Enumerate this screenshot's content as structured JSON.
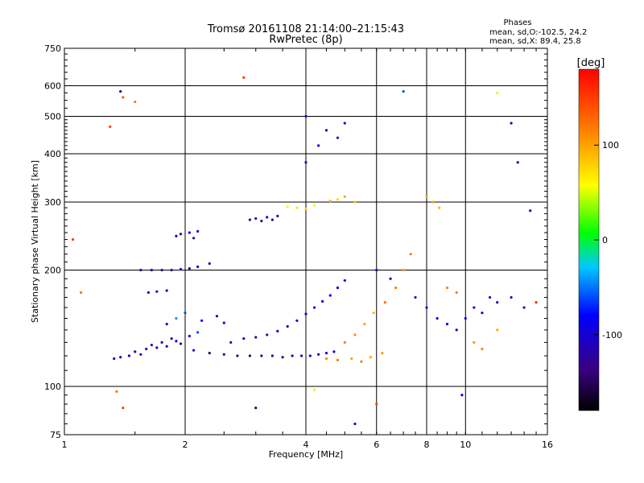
{
  "chart_data": {
    "type": "scatter",
    "title": "Tromsø 20161108 21:14:00–21:15:43",
    "subtitle": "RwPretec (8p)",
    "xlabel": "Frequency [MHz]",
    "ylabel": "Stationary phase Virtual Height [km]",
    "x_scale": "log",
    "y_scale": "log",
    "xlim": [
      1,
      16
    ],
    "ylim": [
      75,
      750
    ],
    "x_ticks": [
      1,
      2,
      4,
      6,
      8,
      10,
      16
    ],
    "x_tick_labels": [
      "1",
      "2",
      "4",
      "6",
      "8",
      "10",
      "16"
    ],
    "y_ticks": [
      75,
      100,
      200,
      300,
      400,
      500,
      600,
      750
    ],
    "y_tick_labels": [
      "75",
      "100",
      "200",
      "300",
      "400",
      "500",
      "600",
      "750"
    ],
    "grid": true,
    "phase_info": {
      "heading": "Phases",
      "line_o": "mean, sd,O:-102.5, 24.2",
      "line_x": "mean, sd,X:  89.4, 25.8"
    },
    "colorbar": {
      "label": "[deg]",
      "range": [
        -180,
        180
      ],
      "ticks": [
        100,
        0,
        -100
      ],
      "tick_labels": [
        "100",
        "0",
        "-100"
      ]
    },
    "series": [
      {
        "values": [
          {
            "x": 1.33,
            "y": 118,
            "phase": -110
          },
          {
            "x": 1.38,
            "y": 119,
            "phase": -105
          },
          {
            "x": 1.45,
            "y": 120,
            "phase": -95
          },
          {
            "x": 1.5,
            "y": 123,
            "phase": -120
          },
          {
            "x": 1.55,
            "y": 121,
            "phase": -100
          },
          {
            "x": 1.6,
            "y": 125,
            "phase": -112
          },
          {
            "x": 1.65,
            "y": 128,
            "phase": -130
          },
          {
            "x": 1.7,
            "y": 126,
            "phase": -98
          },
          {
            "x": 1.75,
            "y": 130,
            "phase": -115
          },
          {
            "x": 1.8,
            "y": 127,
            "phase": -105
          },
          {
            "x": 1.85,
            "y": 133,
            "phase": -125
          },
          {
            "x": 1.9,
            "y": 131,
            "phase": -90
          },
          {
            "x": 1.95,
            "y": 129,
            "phase": -140
          },
          {
            "x": 2.05,
            "y": 135,
            "phase": -80
          },
          {
            "x": 2.15,
            "y": 138,
            "phase": -60
          },
          {
            "x": 2.1,
            "y": 124,
            "phase": -110
          },
          {
            "x": 2.3,
            "y": 122,
            "phase": -150
          },
          {
            "x": 2.5,
            "y": 121,
            "phase": -140
          },
          {
            "x": 2.7,
            "y": 120,
            "phase": -130
          },
          {
            "x": 2.9,
            "y": 120,
            "phase": -145
          },
          {
            "x": 3.1,
            "y": 120,
            "phase": -125
          },
          {
            "x": 3.3,
            "y": 120,
            "phase": -135
          },
          {
            "x": 3.5,
            "y": 119,
            "phase": -140
          },
          {
            "x": 3.7,
            "y": 120,
            "phase": -120
          },
          {
            "x": 3.9,
            "y": 120,
            "phase": -110
          },
          {
            "x": 4.1,
            "y": 120,
            "phase": -100
          },
          {
            "x": 4.3,
            "y": 121,
            "phase": -95
          },
          {
            "x": 4.5,
            "y": 122,
            "phase": -105
          },
          {
            "x": 4.7,
            "y": 123,
            "phase": -90
          },
          {
            "x": 2.6,
            "y": 130,
            "phase": -120
          },
          {
            "x": 2.8,
            "y": 133,
            "phase": -115
          },
          {
            "x": 3.0,
            "y": 134,
            "phase": -130
          },
          {
            "x": 3.2,
            "y": 136,
            "phase": -110
          },
          {
            "x": 3.4,
            "y": 139,
            "phase": -105
          },
          {
            "x": 3.6,
            "y": 143,
            "phase": -120
          },
          {
            "x": 3.8,
            "y": 148,
            "phase": -100
          },
          {
            "x": 4.0,
            "y": 154,
            "phase": -110
          },
          {
            "x": 4.2,
            "y": 160,
            "phase": -95
          },
          {
            "x": 4.4,
            "y": 166,
            "phase": -105
          },
          {
            "x": 4.6,
            "y": 172,
            "phase": -90
          },
          {
            "x": 4.8,
            "y": 180,
            "phase": -100
          },
          {
            "x": 5.0,
            "y": 188,
            "phase": -85
          },
          {
            "x": 2.2,
            "y": 148,
            "phase": -100
          },
          {
            "x": 2.4,
            "y": 152,
            "phase": -110
          },
          {
            "x": 2.5,
            "y": 146,
            "phase": -95
          },
          {
            "x": 2.0,
            "y": 155,
            "phase": -60
          },
          {
            "x": 1.9,
            "y": 150,
            "phase": -40
          },
          {
            "x": 1.8,
            "y": 145,
            "phase": -90
          },
          {
            "x": 1.55,
            "y": 200,
            "phase": -110
          },
          {
            "x": 1.65,
            "y": 200,
            "phase": -120
          },
          {
            "x": 1.75,
            "y": 200,
            "phase": -105
          },
          {
            "x": 1.85,
            "y": 200,
            "phase": -115
          },
          {
            "x": 1.95,
            "y": 201,
            "phase": -100
          },
          {
            "x": 2.05,
            "y": 202,
            "phase": -110
          },
          {
            "x": 2.15,
            "y": 204,
            "phase": -95
          },
          {
            "x": 2.3,
            "y": 208,
            "phase": -120
          },
          {
            "x": 1.62,
            "y": 175,
            "phase": -105
          },
          {
            "x": 1.7,
            "y": 176,
            "phase": -115
          },
          {
            "x": 1.8,
            "y": 177,
            "phase": -98
          },
          {
            "x": 1.9,
            "y": 245,
            "phase": -110
          },
          {
            "x": 1.95,
            "y": 248,
            "phase": -120
          },
          {
            "x": 2.05,
            "y": 250,
            "phase": -100
          },
          {
            "x": 2.1,
            "y": 242,
            "phase": -130
          },
          {
            "x": 2.15,
            "y": 252,
            "phase": -90
          },
          {
            "x": 2.9,
            "y": 270,
            "phase": -120
          },
          {
            "x": 3.0,
            "y": 272,
            "phase": -110
          },
          {
            "x": 3.1,
            "y": 268,
            "phase": -130
          },
          {
            "x": 3.2,
            "y": 274,
            "phase": -100
          },
          {
            "x": 3.3,
            "y": 270,
            "phase": -115
          },
          {
            "x": 3.4,
            "y": 276,
            "phase": -125
          },
          {
            "x": 3.6,
            "y": 292,
            "phase": 60
          },
          {
            "x": 3.8,
            "y": 290,
            "phase": 70
          },
          {
            "x": 4.0,
            "y": 288,
            "phase": 80
          },
          {
            "x": 4.2,
            "y": 294,
            "phase": 55
          },
          {
            "x": 4.6,
            "y": 302,
            "phase": 90
          },
          {
            "x": 4.8,
            "y": 305,
            "phase": 75
          },
          {
            "x": 5.0,
            "y": 310,
            "phase": 100
          },
          {
            "x": 5.3,
            "y": 300,
            "phase": 85
          },
          {
            "x": 4.0,
            "y": 380,
            "phase": -110
          },
          {
            "x": 4.3,
            "y": 420,
            "phase": -100
          },
          {
            "x": 4.5,
            "y": 460,
            "phase": -95
          },
          {
            "x": 4.8,
            "y": 440,
            "phase": -120
          },
          {
            "x": 4.0,
            "y": 500,
            "phase": -105
          },
          {
            "x": 5.0,
            "y": 480,
            "phase": -90
          },
          {
            "x": 4.5,
            "y": 118,
            "phase": 110
          },
          {
            "x": 4.8,
            "y": 117,
            "phase": 120
          },
          {
            "x": 5.2,
            "y": 118,
            "phase": 100
          },
          {
            "x": 5.5,
            "y": 116,
            "phase": 115
          },
          {
            "x": 5.8,
            "y": 119,
            "phase": 95
          },
          {
            "x": 6.2,
            "y": 122,
            "phase": 105
          },
          {
            "x": 5.0,
            "y": 130,
            "phase": 120
          },
          {
            "x": 5.3,
            "y": 136,
            "phase": 110
          },
          {
            "x": 5.6,
            "y": 145,
            "phase": 100
          },
          {
            "x": 5.9,
            "y": 155,
            "phase": 90
          },
          {
            "x": 6.3,
            "y": 165,
            "phase": 125
          },
          {
            "x": 6.7,
            "y": 180,
            "phase": 115
          },
          {
            "x": 7.0,
            "y": 200,
            "phase": 105
          },
          {
            "x": 7.3,
            "y": 220,
            "phase": 120
          },
          {
            "x": 6.0,
            "y": 200,
            "phase": -100
          },
          {
            "x": 6.5,
            "y": 190,
            "phase": -110
          },
          {
            "x": 7.5,
            "y": 170,
            "phase": -90
          },
          {
            "x": 8.0,
            "y": 160,
            "phase": -105
          },
          {
            "x": 8.5,
            "y": 150,
            "phase": -100
          },
          {
            "x": 9.0,
            "y": 145,
            "phase": -95
          },
          {
            "x": 9.5,
            "y": 140,
            "phase": -110
          },
          {
            "x": 10.0,
            "y": 150,
            "phase": -100
          },
          {
            "x": 10.5,
            "y": 160,
            "phase": -105
          },
          {
            "x": 11.0,
            "y": 155,
            "phase": -90
          },
          {
            "x": 11.5,
            "y": 170,
            "phase": -100
          },
          {
            "x": 12.0,
            "y": 165,
            "phase": -110
          },
          {
            "x": 8.0,
            "y": 310,
            "phase": 95
          },
          {
            "x": 8.3,
            "y": 300,
            "phase": 100
          },
          {
            "x": 8.6,
            "y": 290,
            "phase": 90
          },
          {
            "x": 9.0,
            "y": 180,
            "phase": 110
          },
          {
            "x": 9.5,
            "y": 175,
            "phase": 120
          },
          {
            "x": 10.5,
            "y": 130,
            "phase": 105
          },
          {
            "x": 11.0,
            "y": 125,
            "phase": 115
          },
          {
            "x": 12.0,
            "y": 140,
            "phase": 95
          },
          {
            "x": 13.0,
            "y": 170,
            "phase": -100
          },
          {
            "x": 14.0,
            "y": 160,
            "phase": -110
          },
          {
            "x": 15.0,
            "y": 165,
            "phase": 160
          },
          {
            "x": 1.1,
            "y": 175,
            "phase": 120
          },
          {
            "x": 1.05,
            "y": 240,
            "phase": 150
          },
          {
            "x": 1.3,
            "y": 470,
            "phase": 150
          },
          {
            "x": 1.4,
            "y": 560,
            "phase": 130
          },
          {
            "x": 1.5,
            "y": 545,
            "phase": 120
          },
          {
            "x": 1.38,
            "y": 580,
            "phase": -110
          },
          {
            "x": 2.8,
            "y": 630,
            "phase": 150
          },
          {
            "x": 7.0,
            "y": 580,
            "phase": -60
          },
          {
            "x": 12.0,
            "y": 575,
            "phase": 50
          },
          {
            "x": 13.0,
            "y": 480,
            "phase": -110
          },
          {
            "x": 13.5,
            "y": 380,
            "phase": -120
          },
          {
            "x": 14.5,
            "y": 285,
            "phase": -100
          },
          {
            "x": 5.3,
            "y": 80,
            "phase": -100
          },
          {
            "x": 1.4,
            "y": 88,
            "phase": 150
          },
          {
            "x": 1.35,
            "y": 97,
            "phase": 120
          },
          {
            "x": 3.0,
            "y": 88,
            "phase": -150
          },
          {
            "x": 6.0,
            "y": 90,
            "phase": 150
          },
          {
            "x": 9.8,
            "y": 95,
            "phase": -80
          },
          {
            "x": 4.2,
            "y": 98,
            "phase": 50
          }
        ]
      }
    ]
  }
}
